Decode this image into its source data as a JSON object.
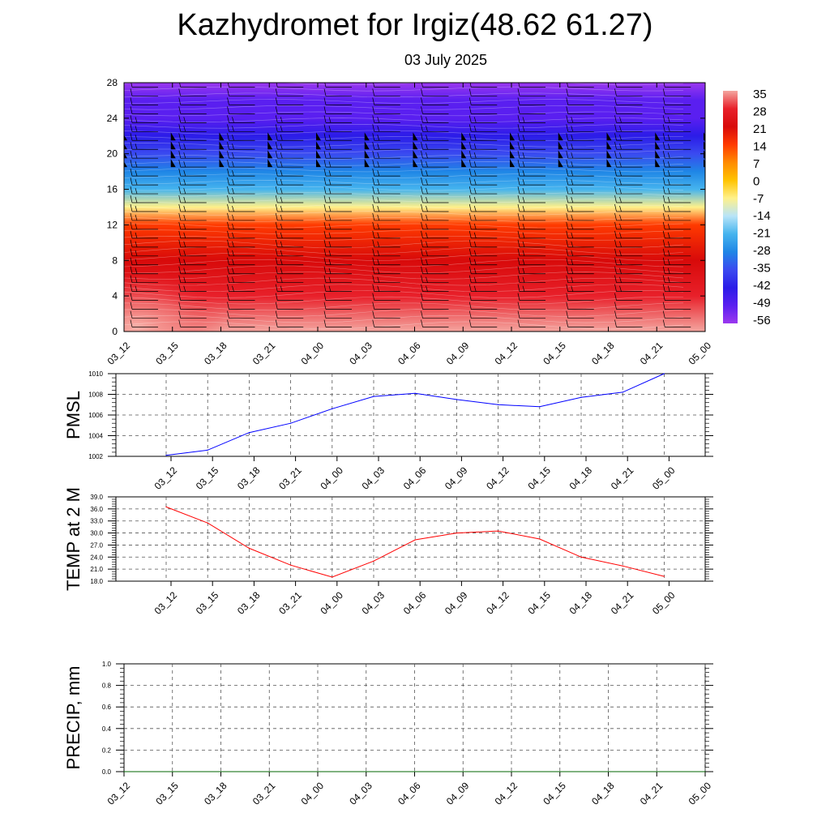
{
  "title": "Kazhydromet for Irgiz(48.62 61.27)",
  "subtitle": "03 July 2025",
  "chart_data": [
    {
      "type": "heatmap",
      "description_field": "temperature cross-section with wind barbs",
      "ylim": [
        0,
        28
      ],
      "y_ticks": [
        "0",
        "4",
        "8",
        "12",
        "16",
        "20",
        "24",
        "28"
      ],
      "x_ticks": [
        "03_12",
        "03_15",
        "03_18",
        "03_21",
        "04_00",
        "04_03",
        "04_06",
        "04_09",
        "04_12",
        "04_15",
        "04_18",
        "04_21",
        "05_00"
      ],
      "colorbar": {
        "labels": [
          "35",
          "28",
          "21",
          "14",
          "7",
          "0",
          "-7",
          "-14",
          "-21",
          "-28",
          "-35",
          "-42",
          "-49",
          "-56"
        ],
        "stops": [
          {
            "v": 35,
            "color": "#f4a6a0"
          },
          {
            "v": 28,
            "color": "#e8202a"
          },
          {
            "v": 21,
            "color": "#d80a0a"
          },
          {
            "v": 14,
            "color": "#ff3a00"
          },
          {
            "v": 7,
            "color": "#ff8a00"
          },
          {
            "v": 0,
            "color": "#ffc300"
          },
          {
            "v": -7,
            "color": "#fff18a"
          },
          {
            "v": -14,
            "color": "#b8e4f8"
          },
          {
            "v": -21,
            "color": "#46b4ee"
          },
          {
            "v": -28,
            "color": "#1f86e6"
          },
          {
            "v": -35,
            "color": "#3a4af0"
          },
          {
            "v": -42,
            "color": "#2b1ce8"
          },
          {
            "v": -49,
            "color": "#5a1ff0"
          },
          {
            "v": -56,
            "color": "#9b38ef"
          }
        ]
      },
      "profile": [
        {
          "h": 0,
          "t": 28
        },
        {
          "h": 4,
          "t": 25
        },
        {
          "h": 8,
          "t": 18
        },
        {
          "h": 12,
          "t": 7
        },
        {
          "h": 14,
          "t": -8
        },
        {
          "h": 16,
          "t": -24
        },
        {
          "h": 18,
          "t": -35
        },
        {
          "h": 20,
          "t": -42
        },
        {
          "h": 22,
          "t": -47
        },
        {
          "h": 24,
          "t": -52
        },
        {
          "h": 26,
          "t": -56
        },
        {
          "h": 28,
          "t": -58
        }
      ]
    },
    {
      "type": "line",
      "ylabel": "PMSL",
      "ylim": [
        1002,
        1010
      ],
      "y_ticks": [
        "1002",
        "1004",
        "1006",
        "1008",
        "1010"
      ],
      "categories": [
        "03_12",
        "03_15",
        "03_18",
        "03_21",
        "04_00",
        "04_03",
        "04_06",
        "04_09",
        "04_12",
        "04_15",
        "04_18",
        "04_21",
        "05_00"
      ],
      "series": [
        {
          "values": [
            1002.1,
            1002.6,
            1004.3,
            1005.2,
            1006.6,
            1007.8,
            1008.1,
            1007.5,
            1007.0,
            1006.8,
            1007.7,
            1008.2,
            1010.0
          ],
          "color": "#0000ff"
        }
      ],
      "grid": true
    },
    {
      "type": "line",
      "ylabel": "TEMP at 2 M",
      "ylim": [
        18,
        39
      ],
      "y_ticks": [
        "18.0",
        "21.0",
        "24.0",
        "27.0",
        "30.0",
        "33.0",
        "36.0",
        "39.0"
      ],
      "categories": [
        "03_12",
        "03_15",
        "03_18",
        "03_21",
        "04_00",
        "04_03",
        "04_06",
        "04_09",
        "04_12",
        "04_15",
        "04_18",
        "04_21",
        "05_00"
      ],
      "series": [
        {
          "values": [
            36.5,
            32.5,
            26.2,
            22.0,
            19.0,
            23.0,
            28.3,
            30.0,
            30.5,
            28.5,
            24.0,
            21.8,
            19.2
          ],
          "color": "#ff0000"
        }
      ],
      "grid": true
    },
    {
      "type": "line",
      "ylabel": "PRECIP, mm",
      "ylim": [
        0,
        1
      ],
      "y_ticks": [
        "0.0",
        "0.2",
        "0.4",
        "0.6",
        "0.8",
        "1.0"
      ],
      "categories": [
        "03_12",
        "03_15",
        "03_18",
        "03_21",
        "04_00",
        "04_03",
        "04_06",
        "04_09",
        "04_12",
        "04_15",
        "04_18",
        "04_21",
        "05_00"
      ],
      "series": [
        {
          "values": [
            0,
            0,
            0,
            0,
            0,
            0,
            0,
            0,
            0,
            0,
            0,
            0,
            0
          ],
          "color": "#006400"
        }
      ],
      "grid": true
    }
  ]
}
